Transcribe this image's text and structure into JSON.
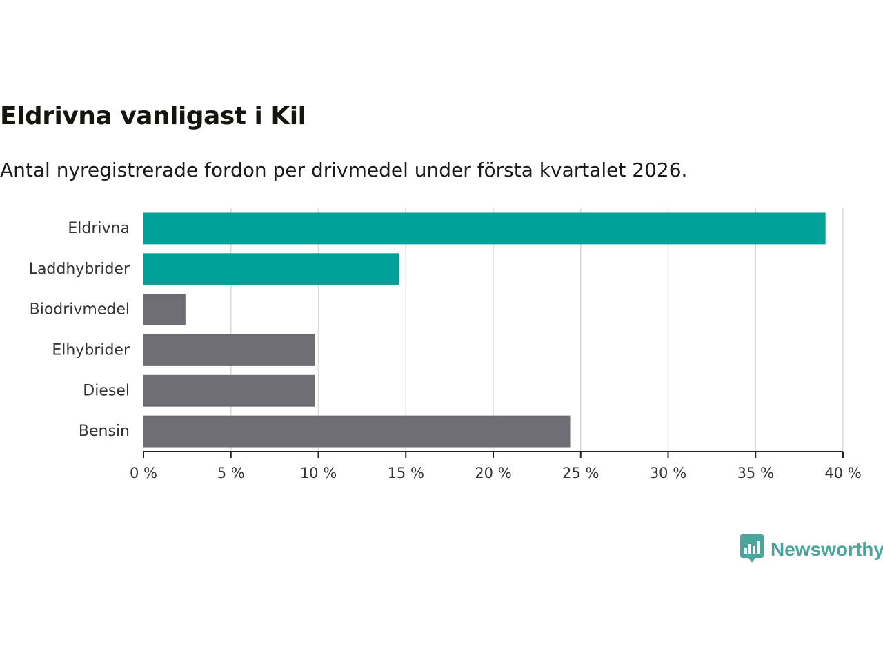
{
  "chart_data": {
    "type": "bar",
    "orientation": "horizontal",
    "title": "Eldrivna vanligast i Kil",
    "subtitle": "Antal nyregistrerade fordon per drivmedel under första kvartalet 2026.",
    "categories": [
      "Eldrivna",
      "Laddhybrider",
      "Biodrivmedel",
      "Elhybrider",
      "Diesel",
      "Bensin"
    ],
    "values": [
      39.0,
      14.6,
      2.4,
      9.8,
      9.8,
      24.4
    ],
    "colors": [
      "#00a19a",
      "#00a19a",
      "#6e6d73",
      "#6e6d73",
      "#6e6d73",
      "#6e6d73"
    ],
    "xlim": [
      0,
      40
    ],
    "xticks": [
      0,
      5,
      10,
      15,
      20,
      25,
      30,
      35,
      40
    ],
    "xtick_labels": [
      "0 %",
      "5 %",
      "10 %",
      "15 %",
      "20 %",
      "25 %",
      "30 %",
      "35 %",
      "40 %"
    ],
    "xlabel": "",
    "ylabel": "",
    "grid": true
  },
  "brand": {
    "name": "Newsworthy",
    "color": "#4aa69a"
  }
}
